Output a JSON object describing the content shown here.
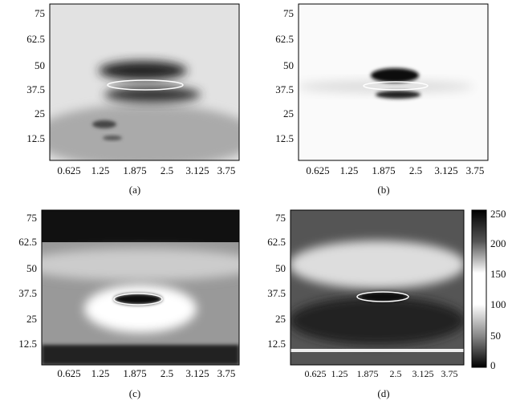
{
  "panels": [
    {
      "caption": "(a)",
      "yticks": [
        "75",
        "62.5",
        "50",
        "37.5",
        "25",
        "12.5"
      ],
      "xticks": [
        "0.625",
        "1.25",
        "1.875",
        "2.5",
        "3.125",
        "3.75"
      ]
    },
    {
      "caption": "(b)",
      "yticks": [
        "75",
        "62.5",
        "50",
        "37.5",
        "25",
        "12.5"
      ],
      "xticks": [
        "0.625",
        "1.25",
        "1.875",
        "2.5",
        "3.125",
        "3.75"
      ]
    },
    {
      "caption": "(c)",
      "yticks": [
        "75",
        "62.5",
        "50",
        "37.5",
        "25",
        "12.5"
      ],
      "xticks": [
        "0.625",
        "1.25",
        "1.875",
        "2.5",
        "3.125",
        "3.75"
      ]
    },
    {
      "caption": "(d)",
      "yticks": [
        "75",
        "62.5",
        "50",
        "37.5",
        "25",
        "12.5"
      ],
      "xticks": [
        "0.625",
        "1.25",
        "1.875",
        "2.5",
        "3.125",
        "3.75"
      ]
    }
  ],
  "colorbar": {
    "ticks": [
      "250",
      "200",
      "150",
      "100",
      "50",
      "0"
    ]
  }
}
